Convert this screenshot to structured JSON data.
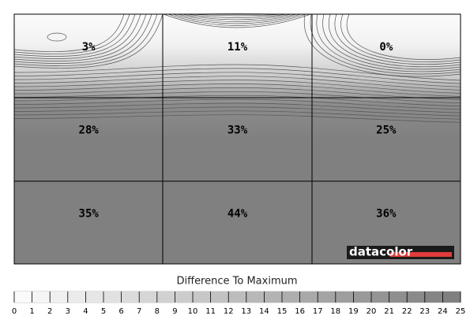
{
  "chart_data": {
    "type": "uniformity",
    "values": [
      [
        3,
        11,
        0
      ],
      [
        28,
        33,
        25
      ],
      [
        35,
        44,
        36
      ]
    ],
    "value_labels": [
      [
        "3%",
        "11%",
        "0%"
      ],
      [
        "28%",
        "33%",
        "25%"
      ],
      [
        "35%",
        "44%",
        "36%"
      ]
    ],
    "colorbar_title": "Difference To Maximum",
    "colorbar_lim": [
      0,
      25
    ],
    "colorbar_ticks": [
      0,
      1,
      2,
      3,
      4,
      5,
      6,
      7,
      8,
      9,
      10,
      11,
      12,
      13,
      14,
      15,
      16,
      17,
      18,
      19,
      20,
      21,
      22,
      23,
      24,
      25
    ],
    "logo": "datacolor"
  }
}
